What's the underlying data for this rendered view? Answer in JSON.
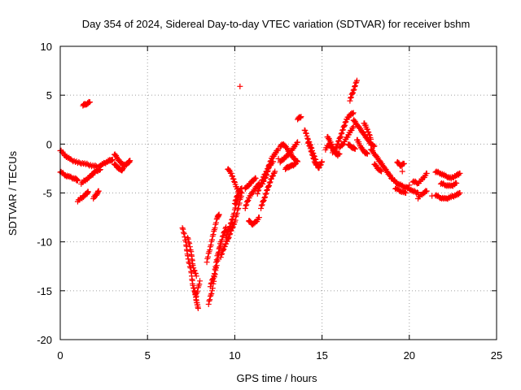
{
  "chart_data": {
    "type": "scatter",
    "title": "Day 354 of 2024, Sidereal Day-to-day VTEC variation (SDTVAR) for receiver bshm",
    "xlabel": "GPS time / hours",
    "ylabel": "SDTVAR / TECUs",
    "xlim": [
      0,
      25
    ],
    "ylim": [
      -20,
      10
    ],
    "xticks": [
      "0",
      "5",
      "10",
      "15",
      "20",
      "25"
    ],
    "yticks": [
      "-20",
      "-15",
      "-10",
      "-5",
      "0",
      "5",
      "10"
    ],
    "grid": true,
    "marker": "+",
    "color": "#ff0000",
    "series": [
      {
        "name": "SDTVAR",
        "segments": [
          [
            [
              0.0,
              -0.6
            ],
            [
              0.3,
              -1.2
            ],
            [
              0.6,
              -1.6
            ],
            [
              1.0,
              -1.9
            ],
            [
              1.4,
              -2.0
            ],
            [
              1.8,
              -2.2
            ],
            [
              2.2,
              -2.3
            ],
            [
              2.5,
              -2.0
            ],
            [
              2.8,
              -1.7
            ],
            [
              3.0,
              -1.6
            ]
          ],
          [
            [
              0.0,
              -2.8
            ],
            [
              0.3,
              -3.2
            ],
            [
              0.6,
              -3.4
            ],
            [
              0.9,
              -3.6
            ],
            [
              1.0,
              -3.7
            ]
          ],
          [
            [
              3.1,
              -1.0
            ],
            [
              3.3,
              -1.5
            ],
            [
              3.5,
              -2.0
            ],
            [
              3.7,
              -2.2
            ],
            [
              3.9,
              -1.9
            ],
            [
              4.0,
              -1.7
            ]
          ],
          [
            [
              3.1,
              -2.0
            ],
            [
              3.3,
              -2.4
            ],
            [
              3.5,
              -2.7
            ],
            [
              3.6,
              -2.5
            ]
          ],
          [
            [
              1.2,
              -4.0
            ],
            [
              1.5,
              -3.6
            ],
            [
              1.8,
              -3.2
            ],
            [
              2.0,
              -2.8
            ],
            [
              2.3,
              -2.6
            ]
          ],
          [
            [
              1.0,
              -5.8
            ],
            [
              1.3,
              -5.4
            ],
            [
              1.5,
              -5.1
            ],
            [
              1.6,
              -4.9
            ]
          ],
          [
            [
              1.9,
              -5.5
            ],
            [
              2.1,
              -5.1
            ],
            [
              2.2,
              -4.8
            ]
          ],
          [
            [
              1.3,
              4.0
            ],
            [
              1.5,
              4.1
            ],
            [
              1.7,
              4.3
            ]
          ],
          [
            [
              7.0,
              -8.5
            ],
            [
              7.2,
              -10.0
            ],
            [
              7.3,
              -11.5
            ],
            [
              7.5,
              -13.0
            ],
            [
              7.6,
              -14.5
            ],
            [
              7.8,
              -15.5
            ],
            [
              8.0,
              -14.0
            ]
          ],
          [
            [
              7.3,
              -9.5
            ],
            [
              7.5,
              -11.0
            ],
            [
              7.6,
              -12.5
            ],
            [
              7.8,
              -13.5
            ]
          ],
          [
            [
              7.7,
              -15.0
            ],
            [
              7.8,
              -16.0
            ],
            [
              7.9,
              -16.8
            ]
          ],
          [
            [
              8.5,
              -16.3
            ],
            [
              8.7,
              -15.0
            ],
            [
              8.9,
              -13.0
            ],
            [
              9.1,
              -11.0
            ],
            [
              9.3,
              -9.5
            ],
            [
              9.5,
              -8.5
            ]
          ],
          [
            [
              8.6,
              -14.5
            ],
            [
              8.8,
              -13.5
            ],
            [
              9.0,
              -11.5
            ],
            [
              9.2,
              -10.0
            ]
          ],
          [
            [
              8.4,
              -12.0
            ],
            [
              8.6,
              -10.5
            ],
            [
              8.8,
              -9.0
            ],
            [
              9.0,
              -7.5
            ],
            [
              9.1,
              -7.2
            ]
          ],
          [
            [
              9.2,
              -11.5
            ],
            [
              9.4,
              -10.5
            ],
            [
              9.6,
              -9.8
            ],
            [
              9.8,
              -8.8
            ],
            [
              10.0,
              -8.0
            ],
            [
              10.2,
              -6.5
            ],
            [
              10.4,
              -5.0
            ]
          ],
          [
            [
              9.5,
              -9.5
            ],
            [
              9.7,
              -8.5
            ],
            [
              9.9,
              -7.5
            ],
            [
              10.1,
              -6.0
            ],
            [
              10.2,
              -5.5
            ]
          ],
          [
            [
              9.6,
              -2.5
            ],
            [
              9.8,
              -3.0
            ],
            [
              10.0,
              -4.0
            ],
            [
              10.2,
              -4.8
            ],
            [
              10.4,
              -5.0
            ]
          ],
          [
            [
              10.0,
              -6.0
            ],
            [
              10.2,
              -5.0
            ],
            [
              10.4,
              -4.5
            ]
          ],
          [
            [
              10.6,
              -6.5
            ],
            [
              10.8,
              -5.5
            ],
            [
              11.0,
              -5.0
            ],
            [
              11.2,
              -4.5
            ],
            [
              11.4,
              -4.0
            ]
          ],
          [
            [
              10.6,
              -4.5
            ],
            [
              10.8,
              -4.2
            ],
            [
              11.0,
              -3.8
            ],
            [
              11.2,
              -3.5
            ]
          ],
          [
            [
              10.8,
              -7.8
            ],
            [
              11.0,
              -8.2
            ],
            [
              11.2,
              -8.0
            ],
            [
              11.4,
              -7.5
            ]
          ],
          [
            [
              11.3,
              -5.0
            ],
            [
              11.5,
              -4.0
            ],
            [
              11.7,
              -3.2
            ],
            [
              11.9,
              -2.5
            ],
            [
              12.1,
              -1.5
            ],
            [
              12.3,
              -1.0
            ],
            [
              12.5,
              -0.5
            ]
          ],
          [
            [
              11.5,
              -6.5
            ],
            [
              11.7,
              -5.5
            ],
            [
              11.9,
              -4.5
            ],
            [
              12.1,
              -3.5
            ],
            [
              12.3,
              -2.8
            ]
          ],
          [
            [
              11.6,
              -4.0
            ],
            [
              11.8,
              -3.2
            ],
            [
              12.0,
              -2.2
            ],
            [
              12.2,
              -1.8
            ]
          ],
          [
            [
              12.6,
              -0.2
            ],
            [
              12.8,
              0.0
            ],
            [
              13.0,
              -0.5
            ],
            [
              13.2,
              -1.0
            ],
            [
              13.4,
              -1.5
            ],
            [
              13.6,
              -1.8
            ]
          ],
          [
            [
              12.6,
              -1.8
            ],
            [
              12.8,
              -1.5
            ],
            [
              13.0,
              -1.2
            ],
            [
              13.2,
              -0.8
            ],
            [
              13.4,
              -0.3
            ],
            [
              13.6,
              0.2
            ]
          ],
          [
            [
              12.9,
              -2.5
            ],
            [
              13.1,
              -2.3
            ],
            [
              13.3,
              -2.2
            ],
            [
              13.5,
              -2.0
            ]
          ],
          [
            [
              13.6,
              2.6
            ],
            [
              13.8,
              2.8
            ]
          ],
          [
            [
              14.0,
              1.5
            ],
            [
              14.2,
              0.5
            ],
            [
              14.4,
              -0.5
            ],
            [
              14.6,
              -1.5
            ],
            [
              14.8,
              -2.5
            ],
            [
              15.0,
              -1.8
            ]
          ],
          [
            [
              14.2,
              0.2
            ],
            [
              14.4,
              -0.8
            ],
            [
              14.6,
              -2.0
            ],
            [
              14.8,
              -2.2
            ]
          ],
          [
            [
              15.2,
              -0.5
            ],
            [
              15.4,
              0.0
            ],
            [
              15.6,
              -0.5
            ],
            [
              15.8,
              -1.0
            ],
            [
              16.0,
              -1.0
            ]
          ],
          [
            [
              15.3,
              0.8
            ],
            [
              15.5,
              0.2
            ],
            [
              15.7,
              -0.6
            ],
            [
              15.9,
              -1.2
            ]
          ],
          [
            [
              15.6,
              -0.8
            ],
            [
              15.8,
              -0.4
            ],
            [
              16.0,
              0.5
            ],
            [
              16.2,
              1.5
            ],
            [
              16.4,
              2.5
            ],
            [
              16.6,
              3.0
            ],
            [
              16.8,
              3.2
            ]
          ],
          [
            [
              16.0,
              -0.3
            ],
            [
              16.2,
              0.0
            ],
            [
              16.4,
              0.6
            ],
            [
              16.6,
              1.2
            ],
            [
              16.8,
              1.8
            ]
          ],
          [
            [
              16.5,
              0.0
            ],
            [
              16.7,
              -0.3
            ],
            [
              16.9,
              -0.5
            ]
          ],
          [
            [
              16.6,
              4.5
            ],
            [
              16.8,
              5.5
            ],
            [
              17.0,
              6.5
            ]
          ],
          [
            [
              16.8,
              2.5
            ],
            [
              17.0,
              2.0
            ],
            [
              17.2,
              1.5
            ],
            [
              17.4,
              1.0
            ],
            [
              17.6,
              0.5
            ],
            [
              17.8,
              0.0
            ],
            [
              18.0,
              -0.2
            ]
          ],
          [
            [
              17.0,
              0.5
            ],
            [
              17.2,
              -0.2
            ],
            [
              17.4,
              -0.8
            ],
            [
              17.6,
              -1.0
            ]
          ],
          [
            [
              17.4,
              2.2
            ],
            [
              17.6,
              1.5
            ],
            [
              17.8,
              0.5
            ]
          ],
          [
            [
              17.8,
              -0.5
            ],
            [
              18.0,
              -1.0
            ],
            [
              18.2,
              -1.5
            ],
            [
              18.4,
              -2.0
            ],
            [
              18.6,
              -2.5
            ],
            [
              18.8,
              -3.0
            ],
            [
              19.0,
              -3.5
            ]
          ],
          [
            [
              18.0,
              -2.0
            ],
            [
              18.2,
              -2.5
            ],
            [
              18.4,
              -2.8
            ]
          ],
          [
            [
              19.0,
              -3.5
            ],
            [
              19.3,
              -4.0
            ],
            [
              19.6,
              -4.3
            ],
            [
              19.9,
              -4.5
            ],
            [
              20.2,
              -4.8
            ],
            [
              20.5,
              -5.0
            ]
          ],
          [
            [
              19.2,
              -4.5
            ],
            [
              19.5,
              -4.8
            ],
            [
              19.8,
              -5.0
            ]
          ],
          [
            [
              19.3,
              -1.8
            ],
            [
              19.5,
              -2.2
            ],
            [
              19.7,
              -2.0
            ]
          ],
          [
            [
              20.2,
              -3.8
            ],
            [
              20.5,
              -4.0
            ],
            [
              20.8,
              -3.5
            ],
            [
              21.0,
              -3.0
            ]
          ],
          [
            [
              20.5,
              -5.5
            ],
            [
              20.8,
              -5.0
            ],
            [
              21.0,
              -4.8
            ]
          ],
          [
            [
              21.5,
              -2.8
            ],
            [
              21.8,
              -3.0
            ],
            [
              22.1,
              -3.3
            ],
            [
              22.4,
              -3.5
            ],
            [
              22.7,
              -3.2
            ],
            [
              22.9,
              -3.0
            ]
          ],
          [
            [
              21.5,
              -5.2
            ],
            [
              21.8,
              -5.5
            ],
            [
              22.1,
              -5.6
            ],
            [
              22.4,
              -5.4
            ],
            [
              22.7,
              -5.2
            ],
            [
              22.9,
              -5.0
            ]
          ],
          [
            [
              21.8,
              -4.0
            ],
            [
              22.1,
              -4.2
            ],
            [
              22.4,
              -4.3
            ],
            [
              22.7,
              -4.0
            ]
          ]
        ],
        "isolated": [
          [
            10.3,
            5.9
          ],
          [
            12.5,
            -1.5
          ],
          [
            20.0,
            -4.2
          ],
          [
            19.6,
            -2.8
          ],
          [
            21.3,
            -5.3
          ]
        ]
      }
    ]
  }
}
